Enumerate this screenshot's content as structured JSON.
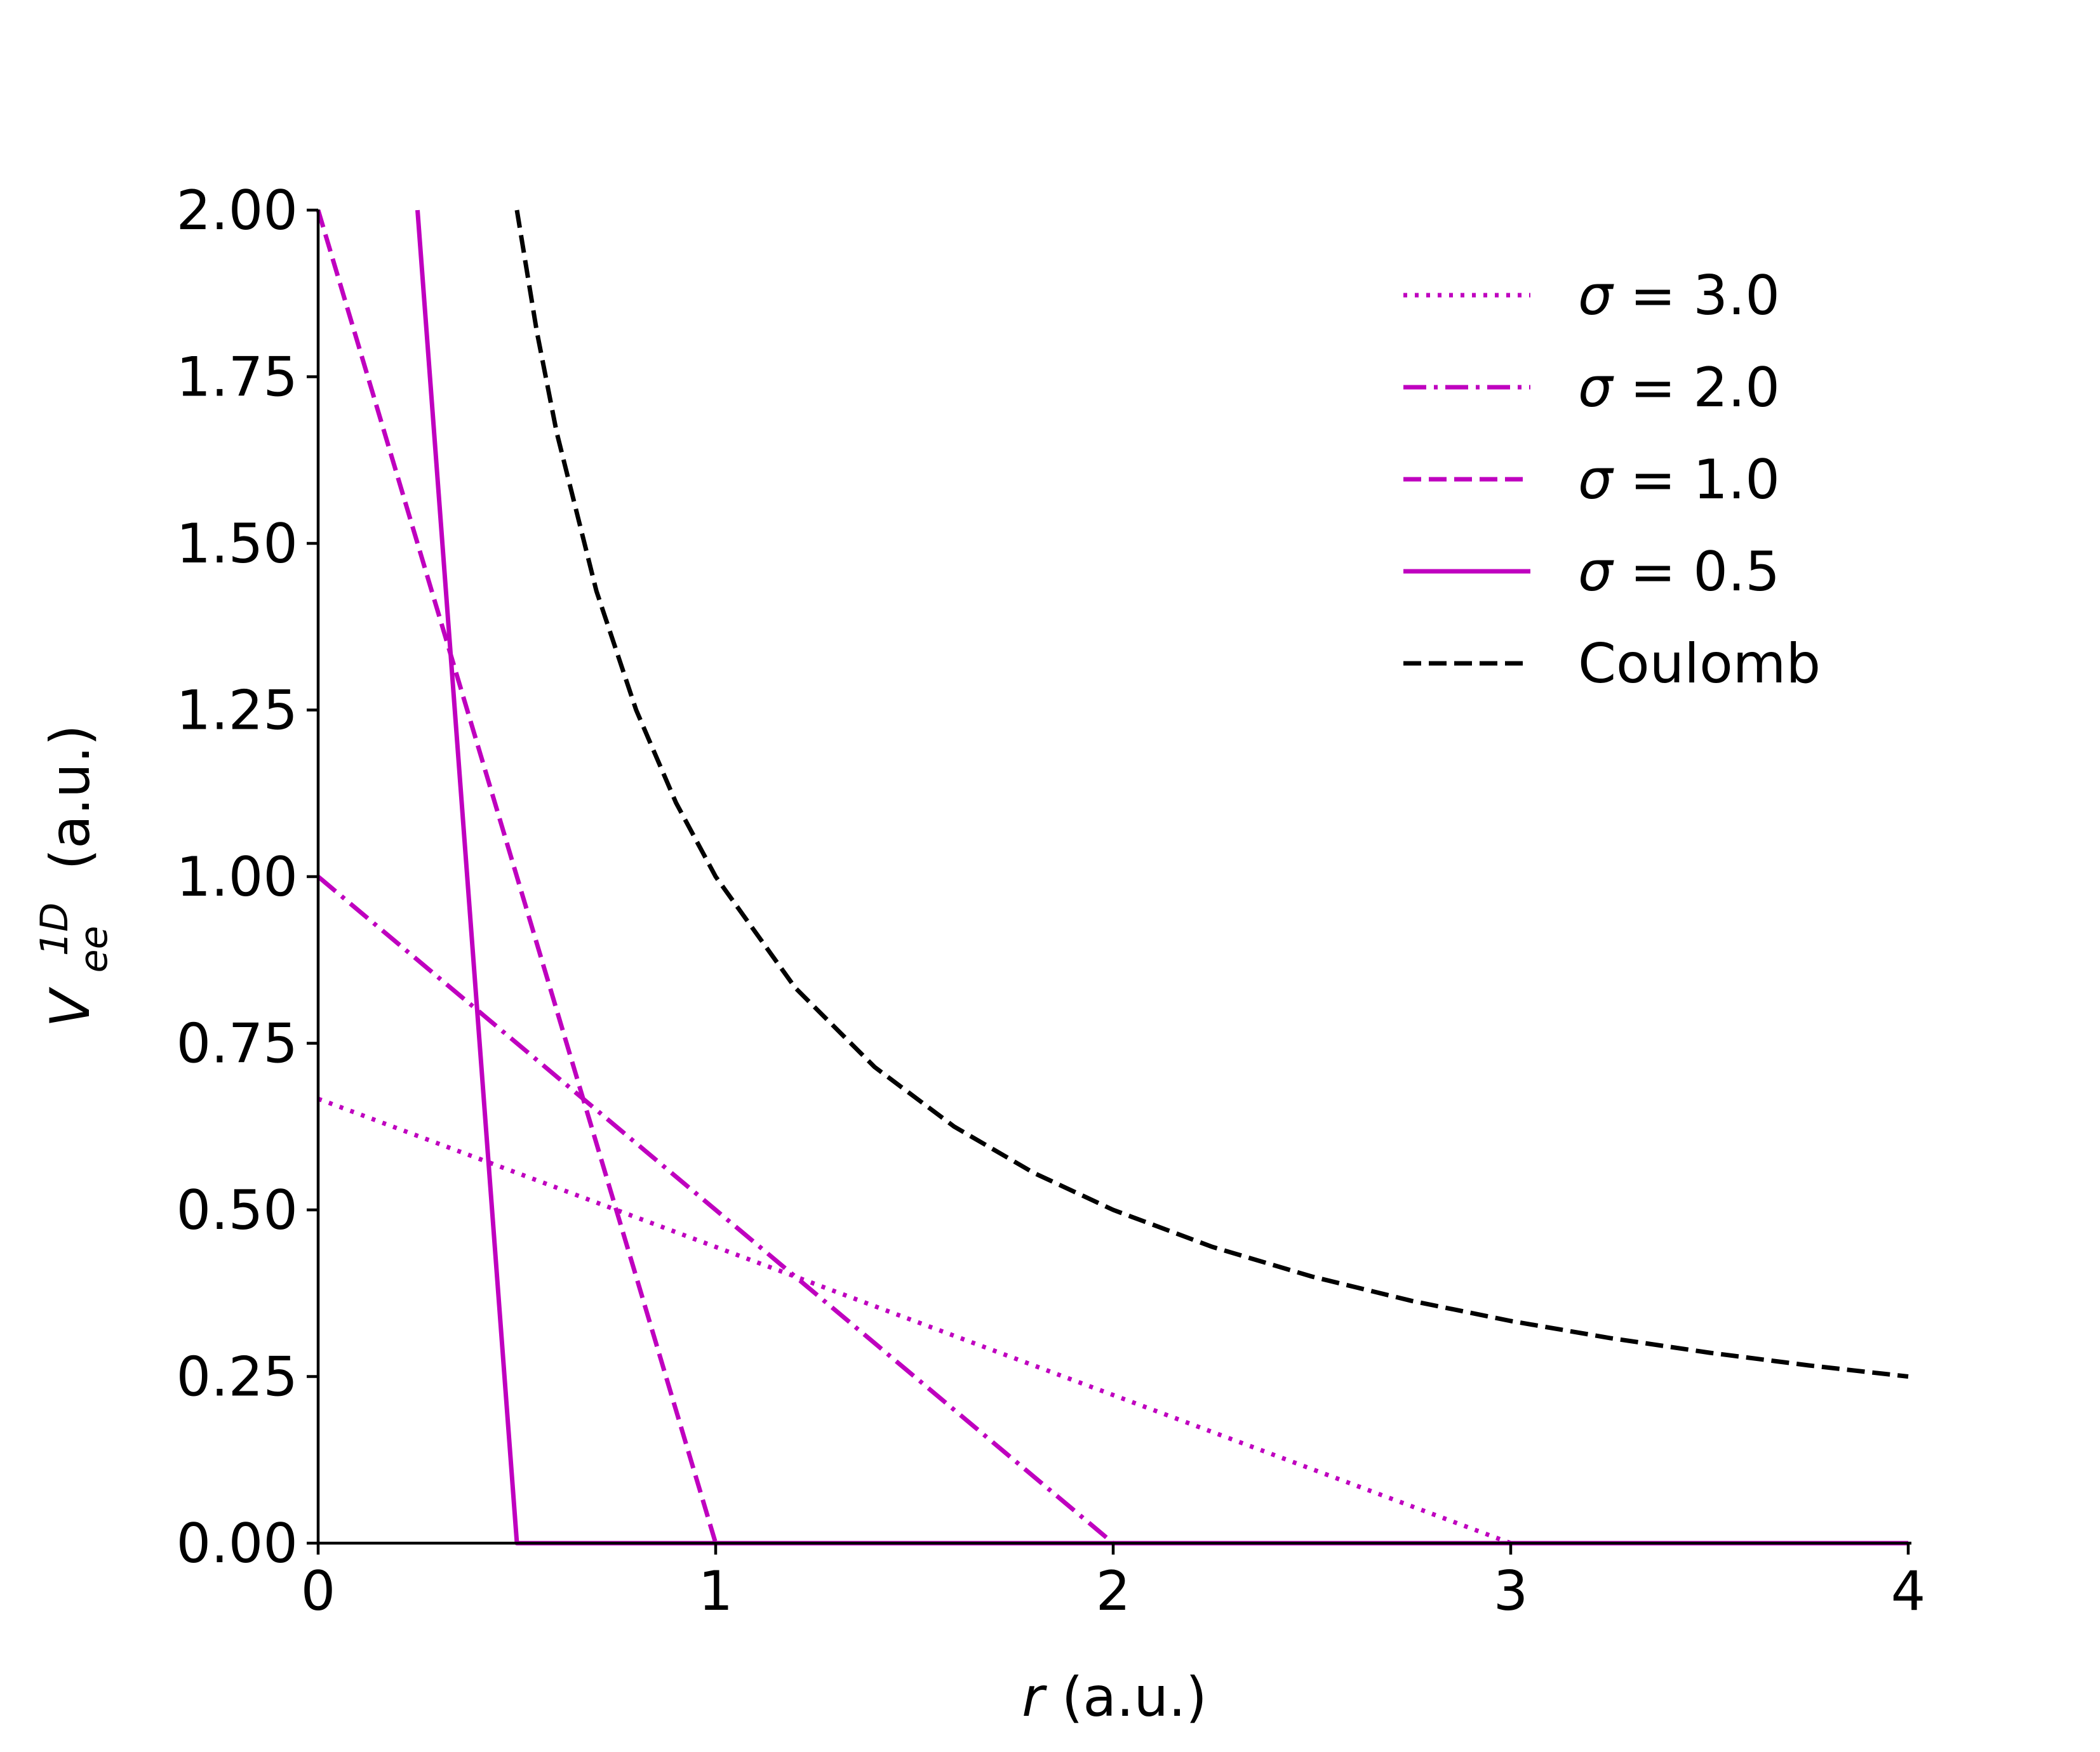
{
  "chart_data": {
    "type": "line",
    "xlabel": {
      "var": "r",
      "unit": "(a.u.)"
    },
    "ylabel": {
      "var": "V",
      "sub": "ee",
      "sup": "1D",
      "unit": "(a.u.)"
    },
    "xlim": [
      0,
      4
    ],
    "ylim": [
      0,
      2
    ],
    "xticks": [
      0,
      1,
      2,
      3,
      4
    ],
    "xtick_labels": [
      "0",
      "1",
      "2",
      "3",
      "4"
    ],
    "yticks": [
      0,
      0.25,
      0.5,
      0.75,
      1.0,
      1.25,
      1.5,
      1.75,
      2.0
    ],
    "ytick_labels": [
      "0.00",
      "0.25",
      "0.50",
      "0.75",
      "1.00",
      "1.25",
      "1.50",
      "1.75",
      "2.00"
    ],
    "grid": false,
    "legend_position": "top-right",
    "series": [
      {
        "name": "σ = 3.0",
        "legend_symbol": "σ",
        "legend_value": "3.0",
        "color": "#bf00bf",
        "dash": "dotted",
        "x": [
          0,
          3,
          4
        ],
        "y": [
          0.6667,
          0,
          0
        ]
      },
      {
        "name": "σ = 2.0",
        "legend_symbol": "σ",
        "legend_value": "2.0",
        "color": "#bf00bf",
        "dash": "dashdot",
        "x": [
          0,
          2,
          4
        ],
        "y": [
          1.0,
          0,
          0
        ]
      },
      {
        "name": "σ = 1.0",
        "legend_symbol": "σ",
        "legend_value": "1.0",
        "color": "#bf00bf",
        "dash": "dashed",
        "x": [
          0,
          1,
          4
        ],
        "y": [
          2.0,
          0,
          0
        ]
      },
      {
        "name": "σ = 0.5",
        "legend_symbol": "σ",
        "legend_value": "0.5",
        "color": "#bf00bf",
        "dash": "solid",
        "x": [
          0.25,
          0.5,
          4
        ],
        "y": [
          2.0,
          0,
          0
        ]
      },
      {
        "name": "Coulomb",
        "legend_symbol": "",
        "legend_value": "Coulomb",
        "color": "#000000",
        "dash": "dashed",
        "x": [
          0.5,
          0.55,
          0.6,
          0.7,
          0.8,
          0.9,
          1.0,
          1.2,
          1.4,
          1.6,
          1.8,
          2.0,
          2.25,
          2.5,
          2.75,
          3.0,
          3.25,
          3.5,
          3.75,
          4.0
        ],
        "y": [
          2.0,
          1.8182,
          1.6667,
          1.4286,
          1.25,
          1.1111,
          1.0,
          0.8333,
          0.7143,
          0.625,
          0.5556,
          0.5,
          0.4444,
          0.4,
          0.3636,
          0.3333,
          0.3077,
          0.2857,
          0.2667,
          0.25
        ]
      }
    ]
  }
}
